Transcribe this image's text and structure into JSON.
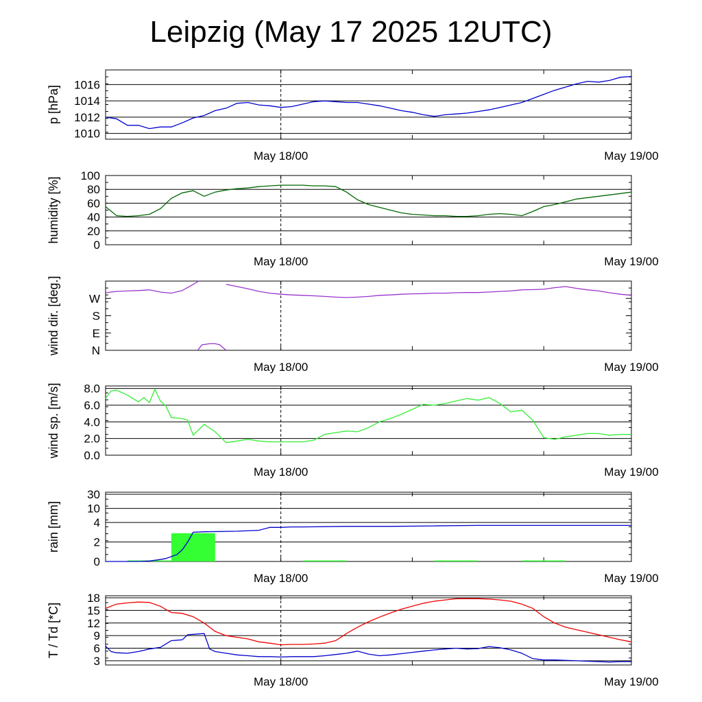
{
  "title": "Leipzig (May 17 2025 12UTC)",
  "chart_data": [
    {
      "type": "line",
      "ylabel": "p [hPa]",
      "yticks": [
        1010,
        1012,
        1014,
        1016
      ],
      "ylim": [
        1009.3,
        1017.8
      ],
      "grid": true,
      "xticks": [
        "May 18/00",
        "May 19/00"
      ],
      "series": [
        {
          "color": "#0000cc",
          "x": [
            0,
            1,
            2,
            3,
            4,
            5,
            6,
            7,
            8,
            9,
            10,
            11,
            12,
            13,
            14,
            15,
            16,
            17,
            18,
            19,
            20,
            21,
            22,
            23,
            24,
            25,
            26,
            27,
            28,
            29,
            30,
            31,
            32,
            33,
            34,
            35,
            36,
            37,
            38,
            39,
            40,
            41,
            42,
            43,
            44,
            45,
            46,
            47,
            48
          ],
          "values": [
            1012.0,
            1011.8,
            1011.0,
            1011.0,
            1010.6,
            1010.8,
            1010.8,
            1011.3,
            1011.9,
            1012.2,
            1012.8,
            1013.1,
            1013.7,
            1013.8,
            1013.5,
            1013.4,
            1013.2,
            1013.3,
            1013.6,
            1013.9,
            1014.0,
            1013.9,
            1013.8,
            1013.8,
            1013.6,
            1013.4,
            1013.1,
            1012.8,
            1012.6,
            1012.3,
            1012.1,
            1012.3,
            1012.4,
            1012.5,
            1012.7,
            1012.9,
            1013.2,
            1013.5,
            1013.8,
            1014.3,
            1014.8,
            1015.3,
            1015.7,
            1016.1,
            1016.4,
            1016.3,
            1016.5,
            1016.9,
            1017.0
          ]
        }
      ]
    },
    {
      "type": "line",
      "ylabel": "humidity [%]",
      "yticks": [
        0,
        20,
        40,
        60,
        80,
        100
      ],
      "ylim": [
        0,
        100
      ],
      "grid": true,
      "xticks": [
        "May 18/00",
        "May 19/00"
      ],
      "series": [
        {
          "color": "#006600",
          "x": [
            0,
            1,
            2,
            3,
            4,
            5,
            6,
            7,
            8,
            9,
            10,
            11,
            12,
            13,
            14,
            15,
            16,
            17,
            18,
            19,
            20,
            21,
            22,
            23,
            24,
            25,
            26,
            27,
            28,
            29,
            30,
            31,
            32,
            33,
            34,
            35,
            36,
            37,
            38,
            39,
            40,
            41,
            42,
            43,
            44,
            45,
            46,
            47,
            48
          ],
          "values": [
            55,
            42,
            41,
            42,
            44,
            52,
            67,
            75,
            78,
            70,
            76,
            79,
            81,
            82,
            84,
            85,
            86,
            86,
            86,
            85,
            85,
            84,
            76,
            65,
            58,
            54,
            50,
            46,
            44,
            43,
            42,
            42,
            41,
            41,
            42,
            44,
            45,
            44,
            42,
            48,
            55,
            58,
            62,
            66,
            68,
            70,
            72,
            74,
            76
          ]
        }
      ]
    },
    {
      "type": "line",
      "ylabel": "wind dir. [deg.]",
      "yticks": [
        "N",
        "E",
        "S",
        "W"
      ],
      "ylim": [
        0,
        315
      ],
      "grid": false,
      "xticks": [
        "May 18/00",
        "May 19/00"
      ],
      "series": [
        {
          "color": "#9933cc",
          "x": [
            0,
            1,
            2,
            3,
            4,
            5,
            6,
            7,
            8,
            8.5
          ],
          "values": [
            262,
            268,
            270,
            272,
            275,
            265,
            260,
            272,
            300,
            315
          ]
        },
        {
          "color": "#9933cc",
          "x": [
            11,
            12,
            13,
            14,
            15,
            16,
            17,
            18,
            19,
            20,
            21,
            22,
            23,
            24,
            25,
            26,
            27,
            28,
            29,
            30,
            31,
            32,
            33,
            34,
            35,
            36,
            37,
            38,
            39,
            40,
            41,
            42,
            43,
            44,
            45,
            46,
            47,
            48
          ],
          "values": [
            300,
            290,
            280,
            268,
            260,
            255,
            252,
            250,
            248,
            245,
            242,
            240,
            242,
            245,
            250,
            252,
            255,
            257,
            258,
            260,
            260,
            262,
            263,
            263,
            265,
            268,
            270,
            275,
            276,
            278,
            285,
            290,
            282,
            275,
            270,
            262,
            255,
            250
          ]
        },
        {
          "color": "#9933cc",
          "x": [
            8.4,
            8.8,
            9.5,
            10,
            10.4,
            11
          ],
          "values": [
            0,
            25,
            30,
            30,
            26,
            0
          ]
        }
      ]
    },
    {
      "type": "line",
      "ylabel": "wind sp. [m/s]",
      "yticks": [
        0.0,
        2.0,
        4.0,
        6.0,
        8.0
      ],
      "ylim": [
        0,
        8.3
      ],
      "grid": true,
      "xticks": [
        "May 18/00",
        "May 19/00"
      ],
      "series": [
        {
          "color": "#33ee33",
          "x": [
            0,
            0.5,
            1,
            2,
            3,
            3.5,
            4,
            4.5,
            5,
            5.5,
            6,
            7,
            7.5,
            8,
            9,
            10,
            11,
            12,
            13,
            14,
            15,
            16,
            17,
            18,
            19,
            20,
            21,
            22,
            23,
            24,
            25,
            26,
            27,
            28,
            29,
            30,
            31,
            32,
            33,
            34,
            35,
            36,
            37,
            38,
            39,
            40,
            41,
            42,
            43,
            44,
            45,
            46,
            47,
            48
          ],
          "values": [
            6.8,
            7.7,
            7.8,
            7.2,
            6.4,
            6.9,
            6.3,
            7.9,
            6.5,
            5.9,
            4.5,
            4.4,
            4.2,
            2.4,
            3.7,
            2.8,
            1.5,
            1.7,
            1.9,
            1.7,
            1.6,
            1.6,
            1.6,
            1.6,
            1.8,
            2.5,
            2.7,
            2.9,
            2.8,
            3.3,
            4.0,
            4.4,
            4.9,
            5.5,
            6.1,
            6.0,
            6.2,
            6.5,
            6.8,
            6.6,
            6.9,
            6.2,
            5.2,
            5.4,
            4.2,
            2.1,
            1.9,
            2.2,
            2.4,
            2.6,
            2.6,
            2.4,
            2.5,
            2.5
          ]
        }
      ]
    },
    {
      "type": "bar+line",
      "ylabel": "rain [mm]",
      "yticks": [
        "0",
        "2",
        "4",
        "10",
        "30"
      ],
      "ylim": [
        0,
        40
      ],
      "grid": true,
      "xticks": [
        "May 18/00",
        "May 19/00"
      ],
      "bars": {
        "color": "#33ff33",
        "segments": [
          {
            "x0": 2,
            "x1": 6,
            "value": 0.05
          },
          {
            "x0": 6,
            "x1": 10,
            "value": 2.9
          },
          {
            "x0": 18,
            "x1": 22,
            "value": 0.1
          },
          {
            "x0": 30,
            "x1": 34,
            "value": 0.02
          },
          {
            "x0": 38,
            "x1": 42,
            "value": 0.02
          }
        ]
      },
      "series": [
        {
          "color": "#0000cc",
          "x": [
            0,
            3,
            4,
            5,
            5.5,
            6,
            6.5,
            7,
            7.5,
            8,
            9,
            12,
            14,
            15,
            16,
            17,
            18,
            22,
            26,
            30,
            34,
            38,
            42,
            46,
            48
          ],
          "values": [
            0,
            0,
            0.05,
            0.2,
            0.3,
            0.5,
            0.7,
            1.2,
            2.0,
            3.0,
            3.05,
            3.1,
            3.2,
            3.5,
            3.5,
            3.55,
            3.55,
            3.6,
            3.6,
            3.65,
            3.7,
            3.7,
            3.7,
            3.7,
            3.7
          ]
        }
      ]
    },
    {
      "type": "line",
      "ylabel": "T / Td [*C]",
      "yticks": [
        3,
        6,
        9,
        12,
        15,
        18
      ],
      "ylim": [
        2,
        18.5
      ],
      "grid": true,
      "xticks": [
        "May 18/00",
        "May 19/00"
      ],
      "series": [
        {
          "color": "#ee0000",
          "x": [
            0,
            1,
            2,
            3,
            4,
            5,
            6,
            7,
            8,
            9,
            10,
            11,
            12,
            13,
            14,
            15,
            16,
            17,
            18,
            19,
            20,
            21,
            22,
            23,
            24,
            25,
            26,
            27,
            28,
            29,
            30,
            31,
            32,
            33,
            34,
            35,
            36,
            37,
            38,
            39,
            40,
            41,
            42,
            43,
            44,
            45,
            46,
            47,
            48
          ],
          "values": [
            15.5,
            16.5,
            16.8,
            17.0,
            16.9,
            16.0,
            14.5,
            14.3,
            13.5,
            12.0,
            10.0,
            9.0,
            8.6,
            8.2,
            7.5,
            7.2,
            6.8,
            6.9,
            6.9,
            7.0,
            7.2,
            7.8,
            9.5,
            11.0,
            12.3,
            13.4,
            14.4,
            15.3,
            16.0,
            16.7,
            17.2,
            17.5,
            17.8,
            17.8,
            17.8,
            17.7,
            17.5,
            17.2,
            16.5,
            15.5,
            13.5,
            12.0,
            11.0,
            10.4,
            9.8,
            9.2,
            8.6,
            8.0,
            7.5
          ]
        },
        {
          "color": "#0000cc",
          "x": [
            0,
            0.5,
            1,
            2,
            3,
            4,
            5,
            5.5,
            6,
            7,
            7.5,
            8,
            9,
            9.5,
            10,
            11,
            12,
            13,
            14,
            15,
            16,
            17,
            18,
            19,
            20,
            21,
            22,
            23,
            24,
            25,
            26,
            27,
            28,
            29,
            30,
            31,
            32,
            33,
            34,
            35,
            36,
            37,
            38,
            39,
            40,
            41,
            42,
            43,
            44,
            45,
            46,
            47,
            48
          ],
          "values": [
            6.5,
            5.2,
            4.9,
            4.8,
            5.2,
            5.8,
            6.2,
            7.0,
            7.8,
            8.0,
            9.2,
            9.3,
            9.5,
            5.8,
            5.2,
            4.8,
            4.4,
            4.2,
            4.0,
            4.0,
            3.9,
            4.0,
            4.0,
            4.0,
            4.2,
            4.5,
            4.8,
            5.3,
            4.6,
            4.2,
            4.4,
            4.7,
            5.0,
            5.3,
            5.6,
            5.8,
            6.0,
            5.8,
            5.9,
            6.4,
            6.1,
            5.6,
            4.8,
            3.5,
            3.2,
            3.2,
            3.1,
            3.0,
            2.9,
            2.8,
            2.7,
            2.8,
            2.8
          ]
        }
      ]
    }
  ]
}
